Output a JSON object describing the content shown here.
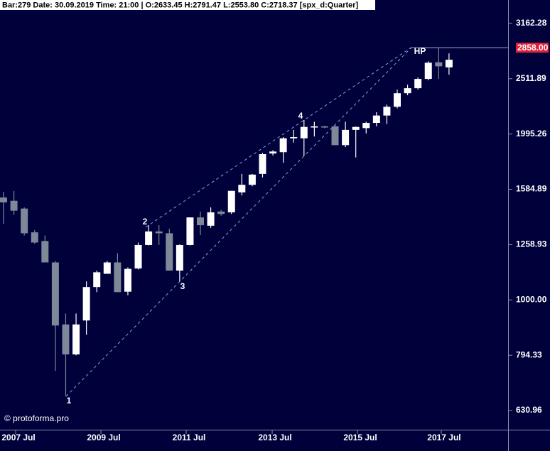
{
  "chart_data": {
    "type": "candlestick",
    "header": "Bar:279 Date: 30.09.2019 Time: 21:00 | O:2633.45 H:2791.47 L:2553.80 C:2718.37 [spx_d:Quarter]",
    "watermark": "© protoforma.pro",
    "log_scale": true,
    "up_color": "#ffffff",
    "down_color": "#7d8898",
    "background": "#00003a",
    "categories": [
      null,
      null,
      null,
      null,
      null,
      null,
      null,
      null,
      null,
      null,
      null,
      null,
      null,
      null,
      null,
      null,
      null,
      null,
      null,
      null,
      null,
      null,
      null,
      null,
      null,
      null,
      null,
      null,
      null,
      null,
      null,
      null,
      null,
      null,
      null,
      null,
      null,
      null,
      null,
      null,
      null,
      null,
      null,
      null
    ],
    "open": [
      1532,
      1511,
      1463,
      1325,
      1278,
      1169,
      903,
      797,
      918,
      1055,
      1115,
      1169,
      1035,
      1140,
      1257,
      1330,
      1320,
      1130,
      1257,
      1410,
      1362,
      1445,
      1440,
      1565,
      1615,
      1690,
      1840,
      1850,
      1960,
      1960,
      2050,
      2060,
      2060,
      1905,
      2030,
      2045,
      2090,
      2155,
      2235,
      2365,
      2415,
      2510,
      2690,
      2633.45
    ],
    "high": [
      1569,
      1574,
      1470,
      1337,
      1308,
      1175,
      945,
      945,
      1080,
      1130,
      1176,
      1215,
      1145,
      1270,
      1365,
      1365,
      1345,
      1260,
      1410,
      1445,
      1470,
      1455,
      1575,
      1690,
      1690,
      1845,
      1865,
      1970,
      2030,
      2115,
      2100,
      2065,
      2075,
      2100,
      2058,
      2100,
      2185,
      2255,
      2400,
      2450,
      2525,
      2700,
      2858,
      2791.47
    ],
    "low": [
      1373,
      1425,
      1308,
      1263,
      1169,
      744,
      670,
      794,
      865,
      1033,
      1115,
      1033,
      1020,
      1135,
      1255,
      1257,
      1130,
      1080,
      1255,
      1310,
      1350,
      1420,
      1430,
      1545,
      1605,
      1665,
      1825,
      1770,
      1925,
      1820,
      1975,
      2045,
      1905,
      1890,
      1810,
      2000,
      2060,
      2080,
      2220,
      2345,
      2400,
      2495,
      2510,
      2553.8
    ],
    "close": [
      1501,
      1450,
      1320,
      1270,
      1169,
      899,
      797,
      903,
      1055,
      1122,
      1169,
      1033,
      1138,
      1257,
      1330,
      1320,
      1130,
      1257,
      1410,
      1365,
      1440,
      1430,
      1575,
      1615,
      1685,
      1835,
      1855,
      1960,
      1970,
      2055,
      2060,
      2050,
      1905,
      2030,
      2055,
      2090,
      2155,
      2235,
      2365,
      2415,
      2510,
      2685,
      2645,
      2718.37
    ],
    "xlim": [
      -0.343,
      48.7
    ],
    "xticks": [
      {
        "value": 1.17,
        "label": "2007 Jul"
      },
      {
        "value": 9.4,
        "label": "2009 Jul"
      },
      {
        "value": 17.63,
        "label": "2011 Jul"
      },
      {
        "value": 25.93,
        "label": "2013 Jul"
      },
      {
        "value": 34.16,
        "label": "2015 Jul"
      },
      {
        "value": 42.25,
        "label": "2017 Jul"
      }
    ],
    "ylim": [
      582.6,
      3486
    ],
    "yticks": [
      630.96,
      794.33,
      {
        "value": 1000,
        "label": "1000.00"
      },
      1258.93,
      1584.89,
      1995.26,
      2511.89,
      3162.28
    ],
    "price_marker": {
      "value": 2858,
      "label": "2858.00",
      "color": "#e0203a"
    },
    "annotations": [
      "1",
      "2",
      "3",
      "4",
      "HP"
    ]
  }
}
